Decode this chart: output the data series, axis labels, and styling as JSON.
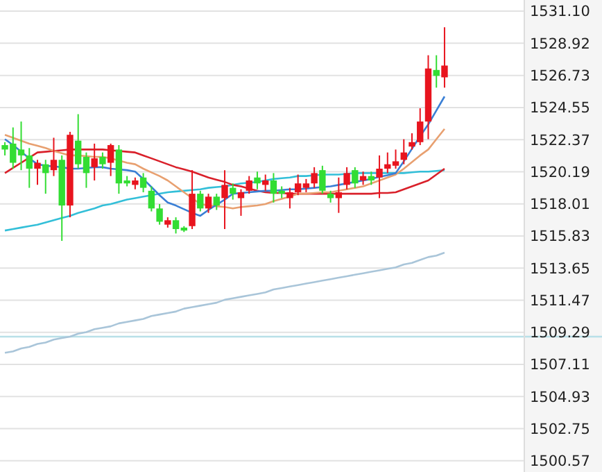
{
  "chart_data": {
    "type": "candlestick",
    "categories": [
      null,
      null,
      null,
      null,
      null,
      null,
      null,
      null,
      null,
      null,
      null,
      null,
      null,
      null,
      null,
      null,
      null,
      null,
      null,
      null,
      null,
      null,
      null,
      null,
      null,
      null,
      null,
      null,
      null,
      null,
      null,
      null,
      null,
      null,
      null,
      null,
      null,
      null,
      null,
      null,
      null,
      null,
      null,
      null,
      null,
      null,
      null,
      null,
      null,
      null,
      null,
      null,
      null,
      null,
      null
    ],
    "ohlc": [
      [
        1522.0,
        1522.2,
        1521.3,
        1521.7
      ],
      [
        1522.1,
        1523.2,
        1520.4,
        1520.8
      ],
      [
        1521.7,
        1523.6,
        1520.3,
        1521.3
      ],
      [
        1521.3,
        1521.8,
        1519.1,
        1520.4
      ],
      [
        1520.4,
        1521.0,
        1519.3,
        1520.8
      ],
      [
        1520.7,
        1521.0,
        1518.7,
        1520.1
      ],
      [
        1520.3,
        1522.5,
        1519.9,
        1521.0
      ],
      [
        1521.0,
        1521.3,
        1515.5,
        1517.9
      ],
      [
        1517.9,
        1522.9,
        1517.1,
        1522.7
      ],
      [
        1522.3,
        1524.1,
        1520.4,
        1520.7
      ],
      [
        1521.2,
        1521.5,
        1519.1,
        1520.1
      ],
      [
        1520.5,
        1522.1,
        1519.6,
        1521.1
      ],
      [
        1521.2,
        1521.5,
        1520.4,
        1520.7
      ],
      [
        1520.8,
        1522.1,
        1519.9,
        1522.0
      ],
      [
        1521.7,
        1522.0,
        1518.7,
        1519.4
      ],
      [
        1519.6,
        1519.9,
        1519.2,
        1519.4
      ],
      [
        1519.3,
        1519.8,
        1519.0,
        1519.6
      ],
      [
        1519.8,
        1520.1,
        1518.8,
        1519.1
      ],
      [
        1518.9,
        1519.2,
        1517.5,
        1517.7
      ],
      [
        1517.7,
        1518.0,
        1516.6,
        1516.8
      ],
      [
        1516.6,
        1517.1,
        1516.4,
        1516.9
      ],
      [
        1516.9,
        1517.1,
        1516.0,
        1516.3
      ],
      [
        1516.4,
        1516.5,
        1516.1,
        1516.2
      ],
      [
        1516.5,
        1520.3,
        1516.3,
        1518.7
      ],
      [
        1518.7,
        1518.9,
        1517.5,
        1517.7
      ],
      [
        1517.7,
        1518.7,
        1517.4,
        1518.5
      ],
      [
        1518.5,
        1518.7,
        1517.6,
        1517.9
      ],
      [
        1518.4,
        1520.3,
        1516.3,
        1519.3
      ],
      [
        1519.1,
        1519.4,
        1518.3,
        1518.7
      ],
      [
        1518.4,
        1519.0,
        1517.2,
        1518.8
      ],
      [
        1518.9,
        1519.9,
        1518.7,
        1519.6
      ],
      [
        1519.8,
        1520.2,
        1519.0,
        1519.4
      ],
      [
        1519.3,
        1520.0,
        1518.9,
        1519.6
      ],
      [
        1519.6,
        1520.1,
        1518.1,
        1518.7
      ],
      [
        1518.9,
        1519.2,
        1518.4,
        1518.7
      ],
      [
        1518.4,
        1519.1,
        1517.7,
        1518.8
      ],
      [
        1518.8,
        1520.0,
        1518.6,
        1519.4
      ],
      [
        1519.1,
        1519.7,
        1518.8,
        1519.4
      ],
      [
        1519.4,
        1520.5,
        1519.1,
        1520.1
      ],
      [
        1520.3,
        1520.6,
        1518.7,
        1518.9
      ],
      [
        1518.7,
        1518.9,
        1518.1,
        1518.4
      ],
      [
        1518.4,
        1519.8,
        1517.4,
        1518.8
      ],
      [
        1519.3,
        1520.5,
        1519.0,
        1520.1
      ],
      [
        1520.3,
        1520.5,
        1519.1,
        1519.4
      ],
      [
        1519.6,
        1520.2,
        1519.3,
        1519.9
      ],
      [
        1519.9,
        1520.2,
        1519.3,
        1519.6
      ],
      [
        1519.8,
        1521.3,
        1518.4,
        1520.4
      ],
      [
        1520.4,
        1521.5,
        1520.1,
        1520.7
      ],
      [
        1520.6,
        1521.7,
        1520.4,
        1520.9
      ],
      [
        1521.0,
        1522.4,
        1520.7,
        1521.5
      ],
      [
        1521.9,
        1522.8,
        1521.7,
        1522.2
      ],
      [
        1522.2,
        1524.5,
        1522.0,
        1523.6
      ],
      [
        1523.6,
        1528.1,
        1522.4,
        1527.2
      ],
      [
        1527.1,
        1528.1,
        1525.9,
        1526.7
      ],
      [
        1526.6,
        1530.0,
        1525.9,
        1527.4
      ]
    ],
    "colors": [
      "#33dd33",
      "#33dd33",
      "#33dd33",
      "#33dd33",
      "#e8141e",
      "#33dd33",
      "#e8141e",
      "#33dd33",
      "#e8141e",
      "#33dd33",
      "#33dd33",
      "#e8141e",
      "#33dd33",
      "#e8141e",
      "#33dd33",
      "#33dd33",
      "#e8141e",
      "#33dd33",
      "#33dd33",
      "#33dd33",
      "#e8141e",
      "#33dd33",
      "#33dd33",
      "#e8141e",
      "#33dd33",
      "#e8141e",
      "#33dd33",
      "#e8141e",
      "#33dd33",
      "#e8141e",
      "#e8141e",
      "#33dd33",
      "#e8141e",
      "#33dd33",
      "#33dd33",
      "#e8141e",
      "#e8141e",
      "#e8141e",
      "#e8141e",
      "#33dd33",
      "#33dd33",
      "#e8141e",
      "#e8141e",
      "#33dd33",
      "#e8141e",
      "#33dd33",
      "#e8141e",
      "#e8141e",
      "#e8141e",
      "#e8141e",
      "#e8141e",
      "#e8141e",
      "#e8141e",
      "#33dd33",
      "#e8141e"
    ],
    "series": [
      {
        "type": "line",
        "color": "#a9c5d9",
        "values": [
          1507.9,
          1508.0,
          1508.2,
          1508.3,
          1508.5,
          1508.6,
          1508.8,
          1508.9,
          1509.0,
          1509.2,
          1509.3,
          1509.5,
          1509.6,
          1509.7,
          1509.9,
          1510.0,
          1510.1,
          1510.2,
          1510.4,
          1510.5,
          1510.6,
          1510.7,
          1510.9,
          1511.0,
          1511.1,
          1511.2,
          1511.3,
          1511.5,
          1511.6,
          1511.7,
          1511.8,
          1511.9,
          1512.0,
          1512.2,
          1512.3,
          1512.4,
          1512.5,
          1512.6,
          1512.7,
          1512.8,
          1512.9,
          1513.0,
          1513.1,
          1513.2,
          1513.3,
          1513.4,
          1513.5,
          1513.6,
          1513.7,
          1513.9,
          1514.0,
          1514.2,
          1514.4,
          1514.5,
          1514.7
        ]
      },
      {
        "type": "line",
        "color": "#33bfd8",
        "values": [
          1516.2,
          1516.3,
          1516.4,
          1516.5,
          1516.6,
          1516.75,
          1516.9,
          1517.05,
          1517.2,
          1517.4,
          1517.55,
          1517.7,
          1517.9,
          1518.0,
          1518.15,
          1518.3,
          1518.4,
          1518.5,
          1518.6,
          1518.7,
          1518.8,
          1518.85,
          1518.9,
          1518.95,
          1519.0,
          1519.1,
          1519.15,
          1519.2,
          1519.3,
          1519.4,
          1519.45,
          1519.5,
          1519.6,
          1519.7,
          1519.75,
          1519.8,
          1519.9,
          1519.9,
          1519.95,
          1520.0,
          1520.0,
          1520.0,
          1520.05,
          1520.1,
          1520.1,
          1520.1,
          1520.1,
          1520.1,
          1520.1,
          1520.1,
          1520.15,
          1520.2,
          1520.2,
          1520.25,
          1520.3
        ]
      },
      {
        "type": "line",
        "color": "#d9202a",
        "values": [
          1520.1,
          1520.45,
          1520.8,
          1521.15,
          1521.5,
          1521.55,
          1521.6,
          1521.65,
          1521.7,
          1521.7,
          1521.7,
          1521.7,
          1521.7,
          1521.65,
          1521.6,
          1521.55,
          1521.5,
          1521.3,
          1521.1,
          1520.9,
          1520.7,
          1520.5,
          1520.35,
          1520.2,
          1520.0,
          1519.8,
          1519.65,
          1519.5,
          1519.3,
          1519.2,
          1519.05,
          1518.9,
          1518.8,
          1518.75,
          1518.75,
          1518.7,
          1518.7,
          1518.7,
          1518.7,
          1518.7,
          1518.7,
          1518.7,
          1518.7,
          1518.7,
          1518.7,
          1518.7,
          1518.75,
          1518.75,
          1518.8,
          1519.0,
          1519.2,
          1519.4,
          1519.6,
          1520.0,
          1520.4
        ]
      },
      {
        "type": "line",
        "color": "#e8a070",
        "values": [
          1522.7,
          1522.5,
          1522.3,
          1522.1,
          1521.95,
          1521.8,
          1521.6,
          1521.45,
          1521.3,
          1521.3,
          1521.25,
          1521.2,
          1521.2,
          1521.1,
          1520.95,
          1520.8,
          1520.7,
          1520.4,
          1520.15,
          1519.9,
          1519.6,
          1519.2,
          1518.8,
          1518.4,
          1518.0,
          1517.9,
          1517.85,
          1517.8,
          1517.7,
          1517.8,
          1517.85,
          1517.9,
          1518.0,
          1518.2,
          1518.35,
          1518.5,
          1518.7,
          1518.7,
          1518.75,
          1518.8,
          1518.8,
          1518.9,
          1519.0,
          1519.1,
          1519.2,
          1519.4,
          1519.6,
          1519.8,
          1520.0,
          1520.4,
          1520.85,
          1521.3,
          1521.7,
          1522.4,
          1523.1
        ]
      },
      {
        "type": "line",
        "color": "#3a7fd5",
        "values": [
          1522.4,
          1522.0,
          1521.55,
          1521.1,
          1520.7,
          1520.6,
          1520.55,
          1520.5,
          1520.4,
          1520.4,
          1520.45,
          1520.5,
          1520.5,
          1520.4,
          1520.35,
          1520.3,
          1520.2,
          1519.7,
          1519.15,
          1518.6,
          1518.1,
          1517.9,
          1517.65,
          1517.4,
          1517.2,
          1517.6,
          1517.95,
          1518.3,
          1518.7,
          1518.75,
          1518.8,
          1518.85,
          1518.9,
          1518.9,
          1518.95,
          1519.0,
          1519.0,
          1519.05,
          1519.1,
          1519.15,
          1519.2,
          1519.3,
          1519.4,
          1519.5,
          1519.6,
          1519.7,
          1519.85,
          1519.95,
          1520.1,
          1520.9,
          1521.75,
          1522.6,
          1523.4,
          1524.35,
          1525.3
        ]
      }
    ],
    "ylim": [
      1499.81,
      1531.85
    ],
    "yticks": [
      {
        "value": 1531.1,
        "label": "1531.10"
      },
      1528.92,
      1526.73,
      1524.55,
      1522.37,
      1520.19,
      1518.01,
      1515.83,
      1513.65,
      1511.47,
      1509.29,
      1507.11,
      1504.93,
      1502.75,
      1500.57
    ],
    "ref_lines": [
      {
        "axis": "y",
        "value": 1509.0,
        "color": "#b8e0e8"
      }
    ],
    "grid": "y",
    "tick_labels": "y"
  }
}
